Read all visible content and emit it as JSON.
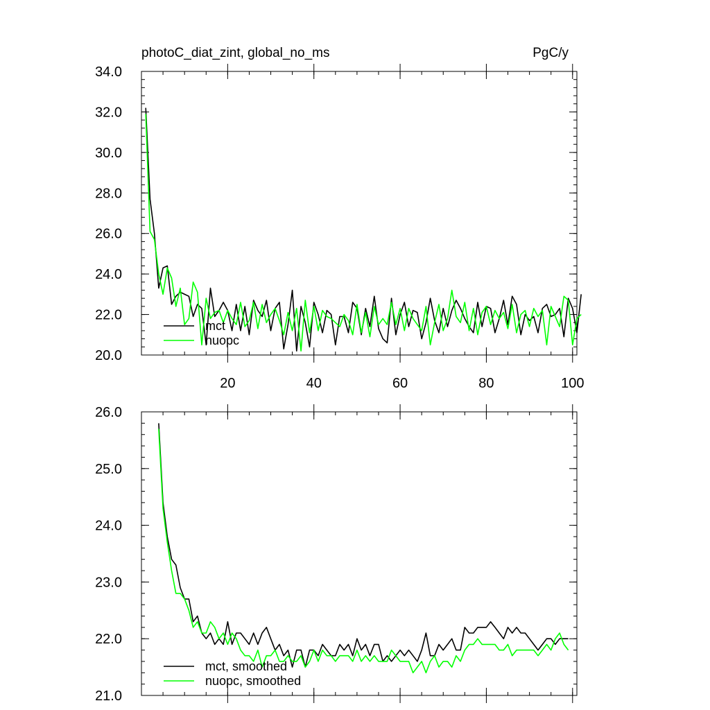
{
  "page": {
    "background": "#ffffff"
  },
  "chart_data": [
    {
      "type": "line",
      "title": "photoC_diat_zint, global_no_ms",
      "units": "PgC/y",
      "xlim": [
        0,
        101
      ],
      "ylim": [
        20.0,
        34.0
      ],
      "xticks": [
        20,
        40,
        60,
        80,
        100
      ],
      "xtick_labels": [
        "20",
        "40",
        "60",
        "80",
        "100"
      ],
      "yticks": [
        20,
        22,
        24,
        26,
        28,
        30,
        32,
        34
      ],
      "ytick_labels": [
        "20.0",
        "22.0",
        "24.0",
        "26.0",
        "28.0",
        "30.0",
        "32.0",
        "34.0"
      ],
      "legend_position": "bottom-left",
      "series": [
        {
          "name": "mct",
          "color": "#000000",
          "x_start": 1,
          "values": [
            32.2,
            27.7,
            26.0,
            23.3,
            24.3,
            24.4,
            22.5,
            22.9,
            23.1,
            23.0,
            22.9,
            21.9,
            22.5,
            22.3,
            20.5,
            23.3,
            21.9,
            22.2,
            22.6,
            22.2,
            21.2,
            22.5,
            21.2,
            22.4,
            21.0,
            22.7,
            22.2,
            21.9,
            22.7,
            21.2,
            22.3,
            22.6,
            20.3,
            21.5,
            23.2,
            20.2,
            22.4,
            21.6,
            20.4,
            22.6,
            22.0,
            21.1,
            22.2,
            22.0,
            20.5,
            21.9,
            21.9,
            21.1,
            22.6,
            22.3,
            21.0,
            22.3,
            21.4,
            22.9,
            21.3,
            20.8,
            20.6,
            22.8,
            21.0,
            22.0,
            22.6,
            21.4,
            22.2,
            22.1,
            20.8,
            21.6,
            22.8,
            21.7,
            21.1,
            22.3,
            21.4,
            22.2,
            22.7,
            22.3,
            21.8,
            21.4,
            21.1,
            22.6,
            21.4,
            22.4,
            22.3,
            21.1,
            21.8,
            22.7,
            21.5,
            22.9,
            22.5,
            21.0,
            22.0,
            21.7,
            21.9,
            21.1,
            22.3,
            22.5,
            21.9,
            22.0,
            22.3,
            20.9,
            22.8,
            22.3,
            21.1,
            23.0
          ]
        },
        {
          "name": "nuopc",
          "color": "#00ff00",
          "x_start": 1,
          "values": [
            31.9,
            26.1,
            25.7,
            24.0,
            23.0,
            24.3,
            23.8,
            22.4,
            23.3,
            21.5,
            21.8,
            23.6,
            23.1,
            20.5,
            22.8,
            21.8,
            22.1,
            22.2,
            21.6,
            22.2,
            21.8,
            21.5,
            22.6,
            21.4,
            21.7,
            22.6,
            21.3,
            22.5,
            21.6,
            22.0,
            22.3,
            21.7,
            21.0,
            22.1,
            21.2,
            22.3,
            20.2,
            22.7,
            21.1,
            22.4,
            21.2,
            22.2,
            21.9,
            21.8,
            21.6,
            21.4,
            22.0,
            21.7,
            21.0,
            22.5,
            21.1,
            22.1,
            20.9,
            22.4,
            21.5,
            21.8,
            21.5,
            22.6,
            21.5,
            22.3,
            21.2,
            22.3,
            21.8,
            21.5,
            21.2,
            22.4,
            20.5,
            21.6,
            22.5,
            21.2,
            21.8,
            23.2,
            21.9,
            21.6,
            22.6,
            21.2,
            22.3,
            21.0,
            22.1,
            22.4,
            21.5,
            22.2,
            21.8,
            22.1,
            21.3,
            22.5,
            21.1,
            22.0,
            22.2,
            21.4,
            22.3,
            21.9,
            22.2,
            20.5,
            22.4,
            21.9,
            21.4,
            22.9,
            22.7,
            20.5,
            21.8,
            22.0
          ]
        }
      ]
    },
    {
      "type": "line",
      "xlim": [
        0,
        101
      ],
      "ylim": [
        21.0,
        26.0
      ],
      "xticks": [
        20,
        40,
        60,
        80,
        100
      ],
      "yticks": [
        21,
        22,
        23,
        24,
        25,
        26
      ],
      "ytick_labels": [
        "21.0",
        "22.0",
        "23.0",
        "24.0",
        "25.0",
        "26.0"
      ],
      "legend_position": "bottom-left",
      "series": [
        {
          "name": "mct, smoothed",
          "color": "#000000",
          "x_start": 4,
          "values": [
            25.8,
            24.4,
            23.8,
            23.4,
            23.3,
            22.9,
            22.7,
            22.7,
            22.3,
            22.4,
            22.1,
            22.0,
            22.1,
            21.9,
            22.0,
            21.9,
            22.3,
            21.9,
            22.1,
            22.1,
            22.0,
            21.9,
            22.1,
            21.9,
            22.1,
            22.2,
            22.0,
            21.8,
            21.9,
            21.7,
            21.8,
            21.5,
            21.8,
            21.8,
            21.5,
            21.8,
            21.8,
            21.7,
            21.9,
            21.8,
            21.7,
            21.7,
            21.9,
            21.8,
            21.9,
            21.7,
            22.0,
            21.8,
            21.9,
            21.7,
            21.9,
            21.9,
            21.6,
            21.7,
            21.6,
            21.7,
            21.8,
            21.7,
            21.8,
            21.7,
            21.6,
            21.8,
            22.1,
            21.7,
            21.7,
            21.9,
            21.8,
            21.9,
            22.0,
            21.8,
            21.8,
            22.2,
            22.1,
            22.1,
            22.2,
            22.2,
            22.2,
            22.3,
            22.2,
            22.1,
            22.0,
            22.2,
            22.1,
            22.2,
            22.1,
            22.1,
            22.0,
            21.9,
            21.8,
            21.9,
            22.0,
            22.0,
            21.9,
            22.0,
            22.0,
            22.0
          ]
        },
        {
          "name": "nuopc, smoothed",
          "color": "#00ff00",
          "x_start": 4,
          "values": [
            25.7,
            24.3,
            23.7,
            23.2,
            22.8,
            22.8,
            22.7,
            22.5,
            22.2,
            22.3,
            22.1,
            22.1,
            22.3,
            22.2,
            22.0,
            22.1,
            21.9,
            22.1,
            22.0,
            21.8,
            21.7,
            21.7,
            21.6,
            21.8,
            21.5,
            21.7,
            21.7,
            21.8,
            21.6,
            21.6,
            21.7,
            21.6,
            21.6,
            21.7,
            21.5,
            21.6,
            21.8,
            21.6,
            21.8,
            21.7,
            21.7,
            21.6,
            21.7,
            21.7,
            21.7,
            21.6,
            21.8,
            21.6,
            21.7,
            21.6,
            21.7,
            21.6,
            21.6,
            21.6,
            21.8,
            21.7,
            21.6,
            21.6,
            21.6,
            21.4,
            21.5,
            21.6,
            21.4,
            21.6,
            21.7,
            21.5,
            21.6,
            21.6,
            21.5,
            21.7,
            21.6,
            21.8,
            21.9,
            21.9,
            22.0,
            21.9,
            21.9,
            21.9,
            21.9,
            21.8,
            21.8,
            21.9,
            21.7,
            21.8,
            21.8,
            21.8,
            21.8,
            21.8,
            21.7,
            21.8,
            21.9,
            21.8,
            22.0,
            22.1,
            21.9,
            21.8
          ]
        }
      ]
    }
  ]
}
